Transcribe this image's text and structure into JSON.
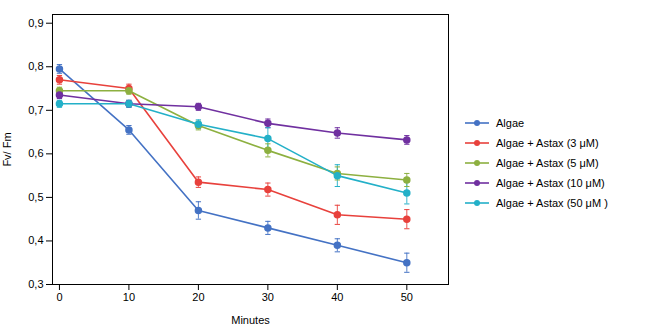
{
  "chart_data": {
    "type": "line",
    "xlabel": "Minutes",
    "ylabel": "Fv/ Fm",
    "x": [
      0,
      10,
      20,
      30,
      40,
      50
    ],
    "series": [
      {
        "name": "Algae",
        "color": "#4472C4",
        "values": [
          0.795,
          0.655,
          0.47,
          0.43,
          0.39,
          0.35
        ],
        "errors": [
          0.01,
          0.01,
          0.02,
          0.015,
          0.015,
          0.022
        ]
      },
      {
        "name": "Algae + Astax (3 μM)",
        "color": "#E8413C",
        "values": [
          0.77,
          0.75,
          0.535,
          0.518,
          0.46,
          0.45
        ],
        "errors": [
          0.01,
          0.01,
          0.012,
          0.015,
          0.022,
          0.022
        ]
      },
      {
        "name": "Algae + Astax (5 μM)",
        "color": "#8DB040",
        "values": [
          0.745,
          0.745,
          0.665,
          0.608,
          0.555,
          0.54
        ],
        "errors": [
          0.008,
          0.008,
          0.01,
          0.015,
          0.015,
          0.015
        ]
      },
      {
        "name": "Algae + Astax (10 μM)",
        "color": "#7030A0",
        "values": [
          0.735,
          0.715,
          0.708,
          0.67,
          0.648,
          0.632
        ],
        "errors": [
          0.008,
          0.008,
          0.008,
          0.01,
          0.012,
          0.01
        ]
      },
      {
        "name": "Algae + Astax (50 μM )",
        "color": "#23B0C8",
        "values": [
          0.715,
          0.715,
          0.668,
          0.635,
          0.55,
          0.51
        ],
        "errors": [
          0.008,
          0.008,
          0.01,
          0.025,
          0.025,
          0.025
        ]
      }
    ],
    "xlim": [
      -1,
      56
    ],
    "ylim": [
      0.3,
      0.92
    ],
    "xticks": [
      0,
      10,
      20,
      30,
      40,
      50
    ],
    "yticks": [
      {
        "value": 0.3,
        "label": "0,3"
      },
      {
        "value": 0.4,
        "label": "0,4"
      },
      {
        "value": 0.5,
        "label": "0,5"
      },
      {
        "value": 0.6,
        "label": "0,6"
      },
      {
        "value": 0.7,
        "label": "0,7"
      },
      {
        "value": 0.8,
        "label": "0,8"
      },
      {
        "value": 0.9,
        "label": "0,9"
      }
    ],
    "marker": "circle",
    "grid": false,
    "legend": "right"
  }
}
